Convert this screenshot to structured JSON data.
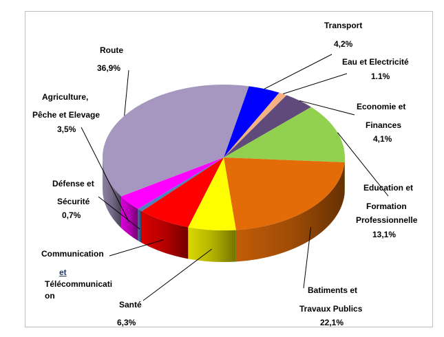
{
  "chart_data": {
    "type": "pie",
    "title": "",
    "slices": [
      {
        "key": "transport",
        "label": [
          "Transport"
        ],
        "value_label": "4,2%",
        "value": 4.2,
        "color": "#0000ff"
      },
      {
        "key": "eau",
        "label": [
          "Eau et Electricité"
        ],
        "value_label": "1.1%",
        "value": 1.1,
        "color": "#f4b183"
      },
      {
        "key": "economie",
        "label": [
          "Economie et",
          "Finances"
        ],
        "value_label": "4,1%",
        "value": 4.1,
        "color": "#604a7b"
      },
      {
        "key": "education",
        "label": [
          "Education et",
          "Formation",
          "Professionnelle"
        ],
        "value_label": "13,1%",
        "value": 13.1,
        "color": "#92d050"
      },
      {
        "key": "batiments",
        "label": [
          "Batiments et",
          "Travaux Publics"
        ],
        "value_label": "22,1%",
        "value": 22.1,
        "color": "#e36c09"
      },
      {
        "key": "sante",
        "label": [
          "Santé"
        ],
        "value_label": "6,3%",
        "value": 6.3,
        "color": "#ffff00"
      },
      {
        "key": "communication",
        "label": [
          "Communication",
          "et",
          "Télécommunicati",
          "on"
        ],
        "value_label": "",
        "value": 7.0,
        "color": "#ff0000"
      },
      {
        "key": "defense",
        "label": [
          "Défense et",
          "Sécurité"
        ],
        "value_label": "0,7%",
        "value": 0.7,
        "color": "#4f81bd"
      },
      {
        "key": "agriculture",
        "label": [
          "Agriculture,",
          "Pêche et Elevage"
        ],
        "value_label": "3,5%",
        "value": 3.5,
        "color": "#ff00ff"
      },
      {
        "key": "route",
        "label": [
          "Route"
        ],
        "value_label": "36,9%",
        "value": 36.9,
        "color": "#a597bf"
      }
    ]
  }
}
